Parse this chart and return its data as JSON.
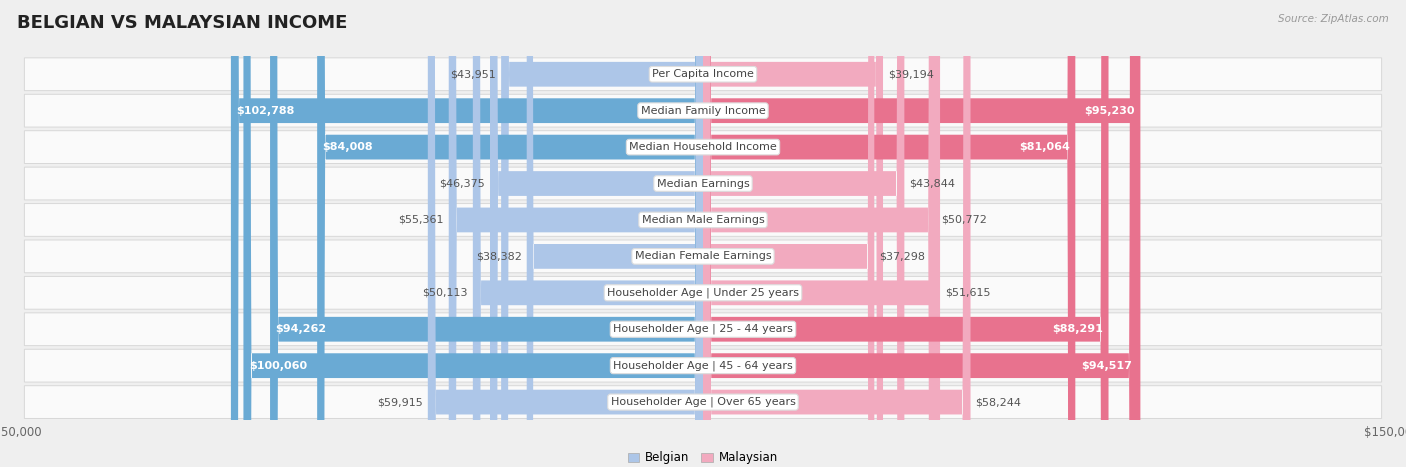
{
  "title": "BELGIAN VS MALAYSIAN INCOME",
  "source": "Source: ZipAtlas.com",
  "categories": [
    "Per Capita Income",
    "Median Family Income",
    "Median Household Income",
    "Median Earnings",
    "Median Male Earnings",
    "Median Female Earnings",
    "Householder Age | Under 25 years",
    "Householder Age | 25 - 44 years",
    "Householder Age | 45 - 64 years",
    "Householder Age | Over 65 years"
  ],
  "belgian_values": [
    43951,
    102788,
    84008,
    46375,
    55361,
    38382,
    50113,
    94262,
    100060,
    59915
  ],
  "malaysian_values": [
    39194,
    95230,
    81064,
    43844,
    50772,
    37298,
    51615,
    88291,
    94517,
    58244
  ],
  "belgian_labels": [
    "$43,951",
    "$102,788",
    "$84,008",
    "$46,375",
    "$55,361",
    "$38,382",
    "$50,113",
    "$94,262",
    "$100,060",
    "$59,915"
  ],
  "malaysian_labels": [
    "$39,194",
    "$95,230",
    "$81,064",
    "$43,844",
    "$50,772",
    "$37,298",
    "$51,615",
    "$88,291",
    "$94,517",
    "$58,244"
  ],
  "belgian_color_light": "#adc6e8",
  "belgian_color_dark": "#6aaad4",
  "malaysian_color_light": "#f2aabf",
  "malaysian_color_dark": "#e8728e",
  "large_threshold": 65000,
  "max_value": 150000,
  "bg_color": "#efefef",
  "row_bg_color": "#fafafa",
  "row_edge_color": "#d8d8d8",
  "label_box_color": "#ffffff",
  "label_box_edge": "#dddddd",
  "title_fontsize": 13,
  "label_fontsize": 8,
  "value_fontsize": 8,
  "axis_label_fontsize": 8.5
}
